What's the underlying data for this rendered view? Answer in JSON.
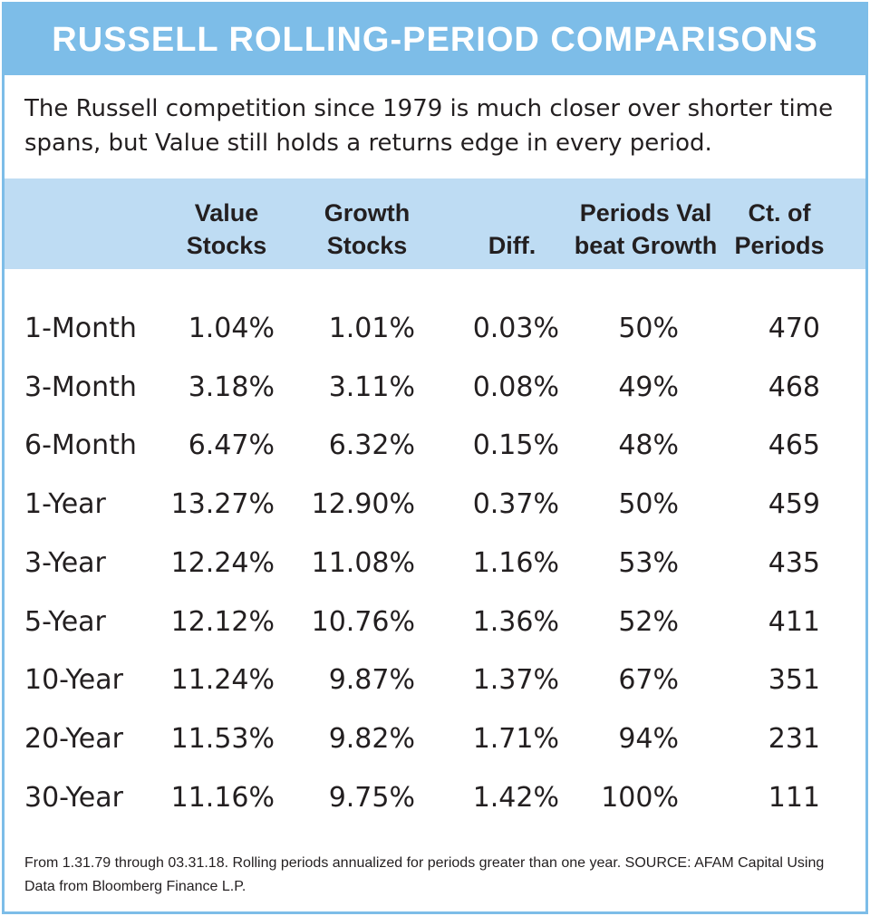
{
  "title": "RUSSELL ROLLING-PERIOD COMPARISONS",
  "subtitle": "The Russell competition since 1979 is much closer over shorter time spans, but Value still holds a returns edge in every period.",
  "columns": [
    "Value\nStocks",
    "Growth\nStocks",
    "Diff.",
    "Periods Val\nbeat Growth",
    "Ct. of\nPeriods"
  ],
  "rows": [
    {
      "period": "1-Month",
      "value": "1.04%",
      "growth": "1.01%",
      "diff": "0.03%",
      "beat": "50%",
      "count": "470"
    },
    {
      "period": "3-Month",
      "value": "3.18%",
      "growth": "3.11%",
      "diff": "0.08%",
      "beat": "49%",
      "count": "468"
    },
    {
      "period": "6-Month",
      "value": "6.47%",
      "growth": "6.32%",
      "diff": "0.15%",
      "beat": "48%",
      "count": "465"
    },
    {
      "period": "1-Year",
      "value": "13.27%",
      "growth": "12.90%",
      "diff": "0.37%",
      "beat": "50%",
      "count": "459"
    },
    {
      "period": "3-Year",
      "value": "12.24%",
      "growth": "11.08%",
      "diff": "1.16%",
      "beat": "53%",
      "count": "435"
    },
    {
      "period": "5-Year",
      "value": "12.12%",
      "growth": "10.76%",
      "diff": "1.36%",
      "beat": "52%",
      "count": "411"
    },
    {
      "period": "10-Year",
      "value": "11.24%",
      "growth": "9.87%",
      "diff": "1.37%",
      "beat": "67%",
      "count": "351"
    },
    {
      "period": "20-Year",
      "value": "11.53%",
      "growth": "9.82%",
      "diff": "1.71%",
      "beat": "94%",
      "count": "231"
    },
    {
      "period": "30-Year",
      "value": "11.16%",
      "growth": "9.75%",
      "diff": "1.42%",
      "beat": "100%",
      "count": "111"
    }
  ],
  "footnote": "From 1.31.79 through 03.31.18. Rolling periods annualized for periods greater than one year. SOURCE: AFAM Capital Using Data from Bloomberg Finance L.P.",
  "colors": {
    "accent": "#7dbde8",
    "header_band": "#bedcf3",
    "text": "#231f20"
  }
}
